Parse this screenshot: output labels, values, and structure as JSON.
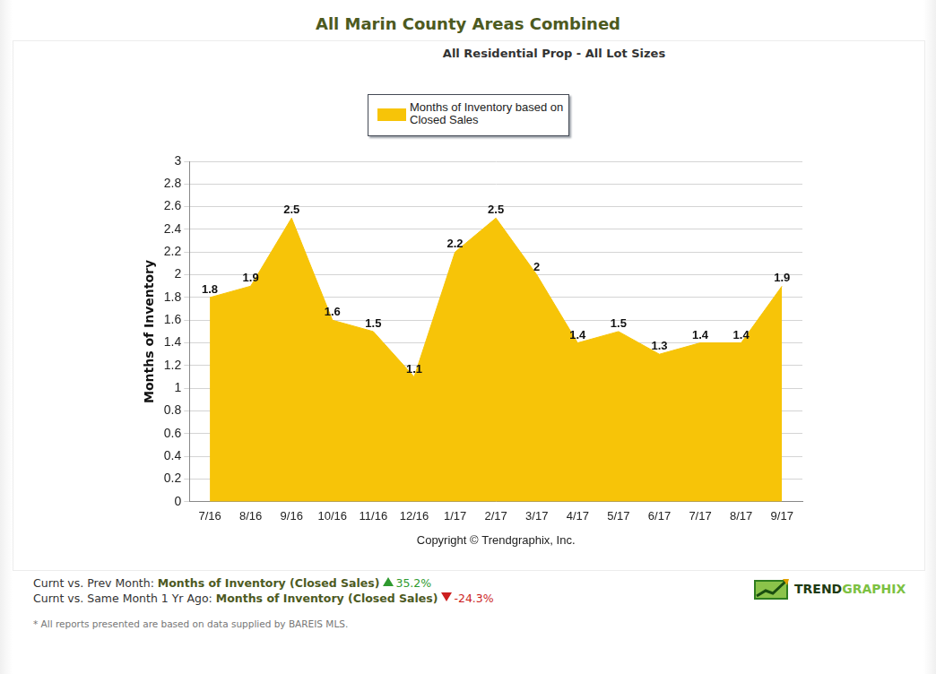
{
  "chart_data": {
    "type": "area",
    "title": "All Marin County Areas Combined",
    "subtitle": "All Residential Prop - All Lot Sizes",
    "xlabel": "Copyright © Trendgraphix, Inc.",
    "ylabel": "Months of Inventory",
    "categories": [
      "7/16",
      "8/16",
      "9/16",
      "10/16",
      "11/16",
      "12/16",
      "1/17",
      "2/17",
      "3/17",
      "4/17",
      "5/17",
      "6/17",
      "7/17",
      "8/17",
      "9/17"
    ],
    "series": [
      {
        "name": "Months of Inventory based on Closed Sales",
        "color": "#f7c408",
        "values": [
          1.8,
          1.9,
          2.5,
          1.6,
          1.5,
          1.1,
          2.2,
          2.5,
          2,
          1.4,
          1.5,
          1.3,
          1.4,
          1.4,
          1.9
        ]
      }
    ],
    "ylim": [
      0,
      3
    ],
    "yticks": [
      0,
      0.2,
      0.4,
      0.6,
      0.8,
      1,
      1.2,
      1.4,
      1.6,
      1.8,
      2,
      2.2,
      2.4,
      2.6,
      2.8,
      3
    ],
    "grid": true,
    "legend": "top",
    "data_labels": true
  },
  "footer": {
    "lines": [
      {
        "label": "Curnt vs. Prev Month:",
        "metric": "Months of Inventory (Closed Sales)",
        "direction": "up",
        "change": "35.2%"
      },
      {
        "label": "Curnt vs. Same Month 1 Yr Ago:",
        "metric": "Months of Inventory (Closed Sales)",
        "direction": "down",
        "change": "-24.3%"
      }
    ],
    "logo": [
      "TREND",
      "GRAPHIX"
    ],
    "note": "* All reports presented are based on data supplied by BAREIS MLS."
  }
}
